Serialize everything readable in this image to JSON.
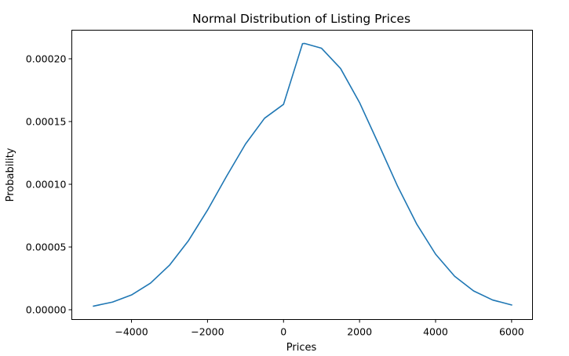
{
  "chart_data": {
    "type": "line",
    "title": "Normal Distribution of Listing Prices",
    "xlabel": "Prices",
    "ylabel": "Probability",
    "xlim": [
      -5570,
      6550
    ],
    "ylim": [
      -7.8e-06,
      0.0002228
    ],
    "grid": false,
    "legend": "none",
    "xticks": [
      {
        "value": -4000,
        "label": "−4000"
      },
      {
        "value": -2000,
        "label": "−2000"
      },
      {
        "value": 0,
        "label": "0"
      },
      {
        "value": 2000,
        "label": "2000"
      },
      {
        "value": 4000,
        "label": "4000"
      },
      {
        "value": 6000,
        "label": "6000"
      }
    ],
    "yticks": [
      {
        "value": 0.0,
        "label": "0.00000"
      },
      {
        "value": 5e-05,
        "label": "0.00005"
      },
      {
        "value": 0.0001,
        "label": "0.00010"
      },
      {
        "value": 0.00015,
        "label": "0.00015"
      },
      {
        "value": 0.0002,
        "label": "0.00020"
      }
    ],
    "series": [
      {
        "color": "#1f77b4",
        "x": [
          -5000,
          -4500,
          -4000,
          -3500,
          -3000,
          -2500,
          -2000,
          -1500,
          -1000,
          -500,
          0,
          500,
          560,
          1000,
          1500,
          2000,
          2500,
          3000,
          3500,
          4000,
          4500,
          5000,
          5500,
          6000
        ],
        "y": [
          2.9e-06,
          6.1e-06,
          1.18e-05,
          2.12e-05,
          3.55e-05,
          5.51e-05,
          7.94e-05,
          0.0001063,
          0.0001321,
          0.0001526,
          0.0001637,
          0.0002121,
          0.0002122,
          0.0002084,
          0.0001923,
          0.0001651,
          0.0001321,
          9.85e-05,
          6.85e-05,
          4.43e-05,
          2.67e-05,
          1.5e-05,
          7.8e-06,
          3.8e-06
        ]
      }
    ]
  },
  "colors": {
    "line": "#1f77b4",
    "axes": "#000000",
    "background": "#ffffff"
  }
}
